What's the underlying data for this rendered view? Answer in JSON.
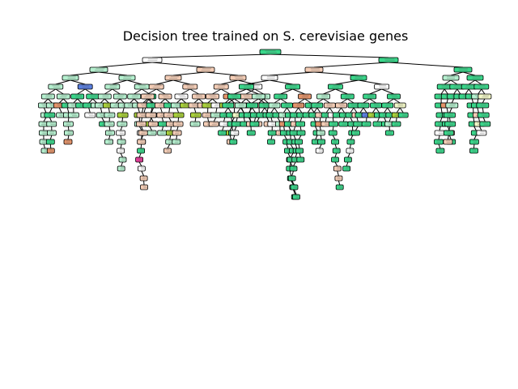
{
  "figure": {
    "title": "Decision tree trained on S. cerevisiae genes"
  },
  "palette": {
    "green": "#39d68a",
    "white": "#ffffff",
    "light_green": "#b5f0cf",
    "orange": "#e5946a",
    "light_orange": "#f4cdb6",
    "yellow_green": "#a9d13a",
    "pale_yellow": "#f3f9c8",
    "magenta": "#e53c9a",
    "purple": "#7b3fd9",
    "blue": "#5a7fe0",
    "edge": "#000000"
  },
  "legend": null
}
